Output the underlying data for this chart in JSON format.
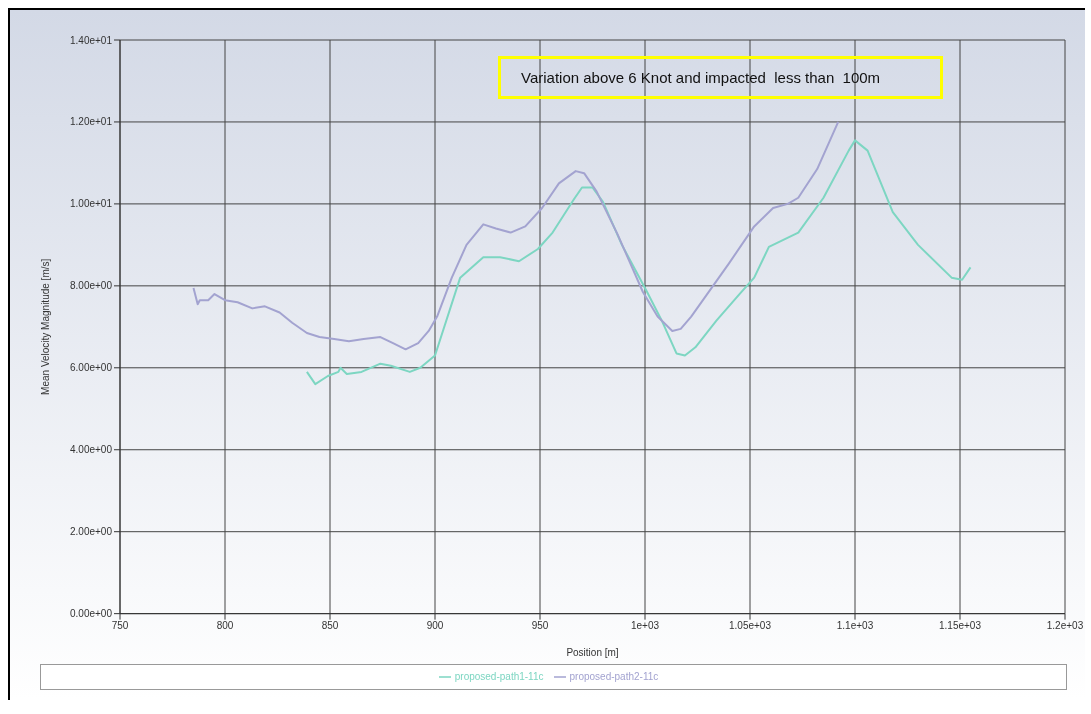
{
  "chart_data": {
    "type": "line",
    "xlabel": "Position [m]",
    "ylabel": "Mean Velocity Magnitude [m/s]",
    "annotations": [
      "Variation above 6 Knot and impacted  less than  100m"
    ],
    "xlim": [
      750,
      1200
    ],
    "xticks": [
      750,
      800,
      850,
      900,
      950,
      {
        "value": 1000,
        "label": "1e+03"
      },
      {
        "value": 1050,
        "label": "1.05e+03"
      },
      {
        "value": 1100,
        "label": "1.1e+03"
      },
      {
        "value": 1150,
        "label": "1.15e+03"
      },
      {
        "value": 1200,
        "label": "1.2e+03"
      }
    ],
    "ylim": [
      0,
      14
    ],
    "yticks": [
      {
        "value": 0,
        "label": "0.00e+00"
      },
      {
        "value": 2,
        "label": "2.00e+00"
      },
      {
        "value": 4,
        "label": "4.00e+00"
      },
      {
        "value": 6,
        "label": "6.00e+00"
      },
      {
        "value": 8,
        "label": "8.00e+00"
      },
      {
        "value": 10,
        "label": "1.00e+01"
      },
      {
        "value": 12,
        "label": "1.20e+01"
      },
      {
        "value": 14,
        "label": "1.40e+01"
      }
    ],
    "grid": true,
    "legend": "bottom",
    "marker": "none",
    "line_style": "solid",
    "series": [
      {
        "name": "proposed-path1-11c",
        "color": "#7dd6c2",
        "x": [
          839,
          843,
          849,
          854,
          855,
          858,
          865,
          874,
          879,
          888,
          893,
          900,
          912,
          923,
          931,
          940,
          949,
          956,
          966,
          970,
          975,
          980,
          989,
          1001,
          1008,
          1015,
          1019,
          1024,
          1034,
          1045,
          1052,
          1059,
          1073,
          1085,
          1097,
          1100,
          1106,
          1118,
          1130,
          1146,
          1151,
          1155
        ],
        "values": [
          5.9,
          5.6,
          5.8,
          5.9,
          6.0,
          5.85,
          5.9,
          6.1,
          6.05,
          5.9,
          6.0,
          6.3,
          8.2,
          8.7,
          8.7,
          8.6,
          8.9,
          9.3,
          10.1,
          10.4,
          10.4,
          10.05,
          9.0,
          7.85,
          7.15,
          6.35,
          6.3,
          6.5,
          7.15,
          7.8,
          8.2,
          8.95,
          9.3,
          10.15,
          11.3,
          11.55,
          11.3,
          9.8,
          9.0,
          8.2,
          8.15,
          8.45
        ]
      },
      {
        "name": "proposed-path2-11c",
        "color": "#a3a3d0",
        "x": [
          785,
          787,
          788,
          792,
          795,
          800,
          806,
          813,
          819,
          826,
          832,
          839,
          845,
          852,
          859,
          866,
          874,
          880,
          886,
          892,
          897,
          901,
          908,
          915,
          923,
          929,
          936,
          943,
          951,
          959,
          967,
          971,
          977,
          987,
          999,
          1006,
          1013,
          1017,
          1022,
          1040,
          1052,
          1061,
          1068,
          1073,
          1082,
          1092
        ],
        "values": [
          7.95,
          7.55,
          7.65,
          7.65,
          7.8,
          7.65,
          7.6,
          7.45,
          7.5,
          7.35,
          7.1,
          6.85,
          6.75,
          6.7,
          6.65,
          6.7,
          6.75,
          6.6,
          6.45,
          6.6,
          6.9,
          7.25,
          8.2,
          9.0,
          9.5,
          9.4,
          9.3,
          9.45,
          9.9,
          10.5,
          10.8,
          10.75,
          10.3,
          9.25,
          7.85,
          7.25,
          6.9,
          6.95,
          7.25,
          8.55,
          9.45,
          9.9,
          10.0,
          10.15,
          10.85,
          12.0
        ]
      }
    ]
  }
}
